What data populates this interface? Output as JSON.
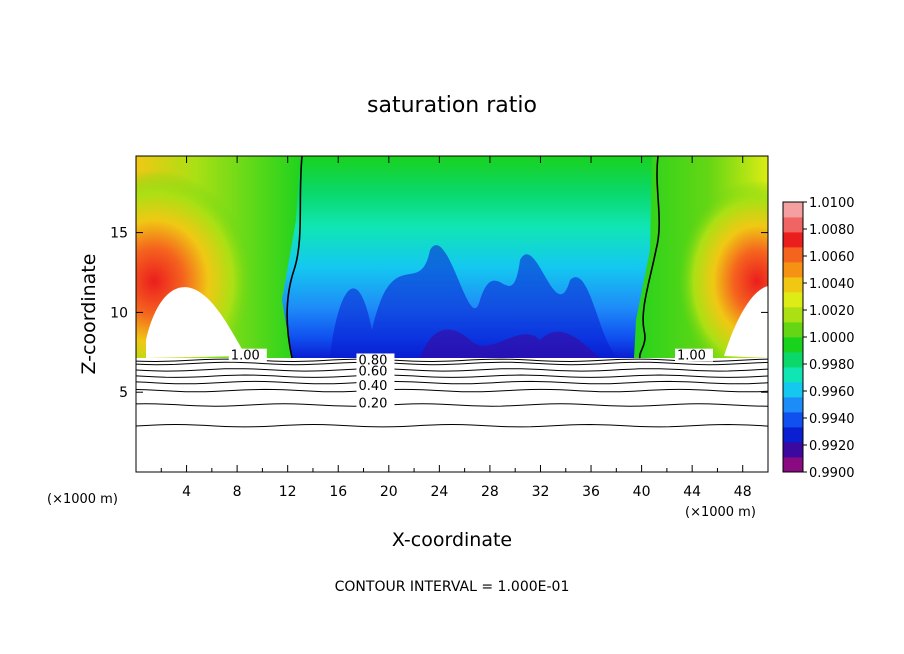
{
  "chart_data": {
    "type": "heatmap",
    "title": "saturation ratio",
    "xlabel": "X-coordinate",
    "ylabel": "Z-coordinate",
    "x_multiplier_label": "(×1000 m)",
    "x_multiplier_label_right": "(×1000 m)",
    "xlim": [
      0,
      50
    ],
    "ylim": [
      0,
      19.8
    ],
    "xticks": [
      "4",
      "8",
      "12",
      "16",
      "20",
      "24",
      "28",
      "32",
      "36",
      "40",
      "44",
      "48"
    ],
    "yticks": [
      "5",
      "10",
      "15"
    ],
    "footnote": "CONTOUR INTERVAL = 1.000E-01",
    "colorbar": {
      "min": 0.99,
      "max": 1.01,
      "labels": [
        "1.0100",
        "1.0080",
        "1.0060",
        "1.0040",
        "1.0020",
        "1.0000",
        "0.9980",
        "0.9960",
        "0.9940",
        "0.9920",
        "0.9900"
      ],
      "colors": [
        "#8a0a82",
        "#3b08a0",
        "#0a1ed2",
        "#1050f0",
        "#1e8cf8",
        "#14c8f0",
        "#10e6b4",
        "#0ad86a",
        "#19d21e",
        "#64d614",
        "#aae014",
        "#dcec14",
        "#f0c814",
        "#f59214",
        "#f5641e",
        "#eb1e1e",
        "#f06464",
        "#f5a0a0"
      ]
    },
    "contour_labels": [
      "1.00",
      "0.80",
      "0.60",
      "0.40",
      "0.20",
      "1.00"
    ],
    "contour_lines_z": [
      2.9,
      4.2,
      5.1,
      5.6,
      6.0,
      6.4,
      6.8,
      7.0
    ],
    "contour_label_values": [
      {
        "text": "1.00",
        "x": 7.5,
        "z": 7.1
      },
      {
        "text": "0.80",
        "x": 17.6,
        "z": 6.8
      },
      {
        "text": "0.60",
        "x": 17.6,
        "z": 6.1
      },
      {
        "text": "0.40",
        "x": 17.6,
        "z": 5.2
      },
      {
        "text": "0.20",
        "x": 17.6,
        "z": 4.1
      },
      {
        "text": "1.00",
        "x": 42.8,
        "z": 7.1
      }
    ]
  }
}
